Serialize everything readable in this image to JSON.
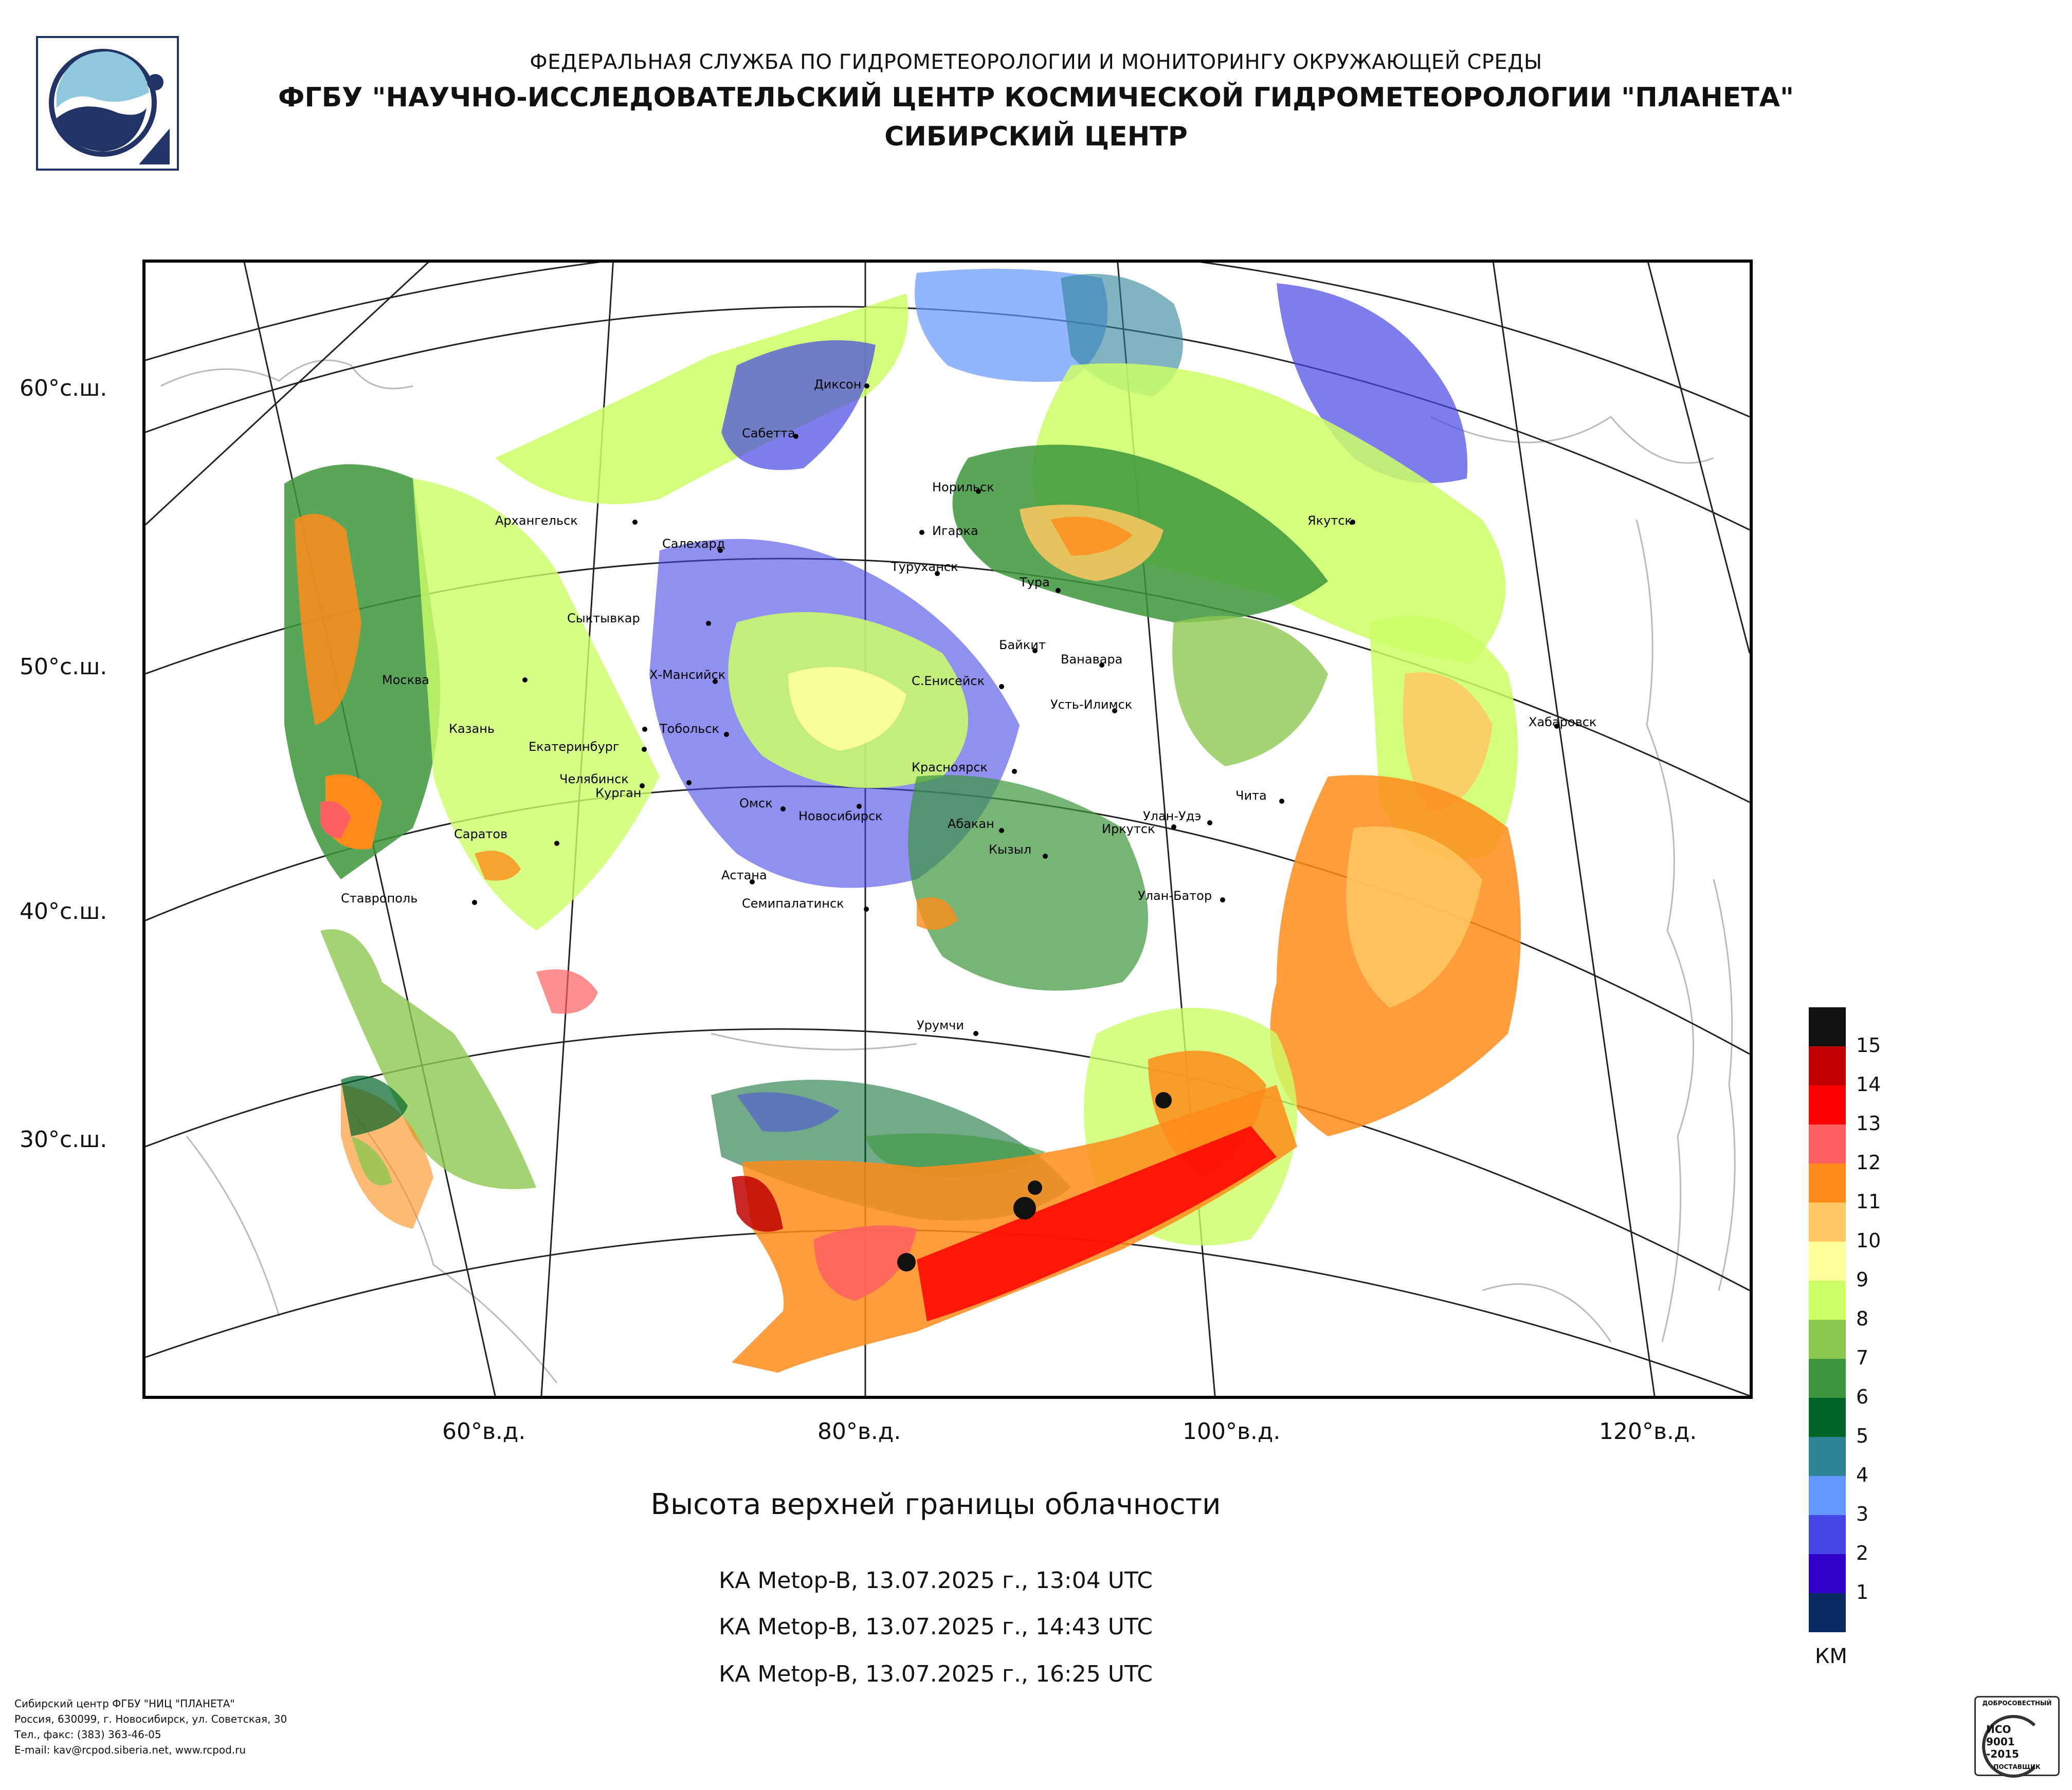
{
  "header": {
    "line1": "ФЕДЕРАЛЬНАЯ СЛУЖБА ПО ГИДРОМЕТЕОРОЛОГИИ И МОНИТОРИНГУ ОКРУЖАЮЩЕЙ СРЕДЫ",
    "line2": "ФГБУ \"НАУЧНО-ИССЛЕДОВАТЕЛЬСКИЙ ЦЕНТР КОСМИЧЕСКОЙ ГИДРОМЕТЕОРОЛОГИИ \"ПЛАНЕТА\"",
    "line3": "СИБИРСКИЙ ЦЕНТР"
  },
  "map": {
    "lat_labels": [
      "60°с.ш.",
      "50°с.ш.",
      "40°с.ш.",
      "30°с.ш."
    ],
    "lon_labels": [
      "60°в.д.",
      "80°в.д.",
      "100°в.д.",
      "120°в.д."
    ],
    "cities": [
      "Архангельск",
      "Сыктывкар",
      "Москва",
      "Казань",
      "Екатеринбург",
      "Челябинск",
      "Курган",
      "Ставрополь",
      "Саратов",
      "Диксон",
      "Сабетта",
      "Салехард",
      "Х-Мансийск",
      "Тобольск",
      "Омск",
      "Новосибирск",
      "Астана",
      "Семипалатинск",
      "Норильск",
      "Игарка",
      "Туруханск",
      "Тура",
      "Байкит",
      "Ванавара",
      "С.Енисейск",
      "Усть-Илимск",
      "Красноярск",
      "Абакан",
      "Кызыл",
      "Иркутск",
      "Улан-Удэ",
      "Улан-Батор",
      "Чита",
      "Якутск",
      "Хабаровск",
      "Урумчи"
    ]
  },
  "title": "Высота верхней границы облачности",
  "passes": [
    "КА Metop-B, 13.07.2025 г., 13:04 UTC",
    "КА Metop-B, 13.07.2025 г., 14:43 UTC",
    "КА Metop-B, 13.07.2025 г., 16:25 UTC"
  ],
  "legend": {
    "unit": "КМ",
    "levels": [
      {
        "label": "15",
        "color": "#111111"
      },
      {
        "label": "14",
        "color": "#c00000"
      },
      {
        "label": "13",
        "color": "#ff0000"
      },
      {
        "label": "12",
        "color": "#ff6060"
      },
      {
        "label": "11",
        "color": "#ff8c1a"
      },
      {
        "label": "10",
        "color": "#ffc860"
      },
      {
        "label": "9",
        "color": "#ffff99"
      },
      {
        "label": "8",
        "color": "#ccff66"
      },
      {
        "label": "7",
        "color": "#8cc850"
      },
      {
        "label": "6",
        "color": "#3c963c"
      },
      {
        "label": "5",
        "color": "#006428"
      },
      {
        "label": "4",
        "color": "#2d8296"
      },
      {
        "label": "3",
        "color": "#6496ff"
      },
      {
        "label": "2",
        "color": "#4646e6"
      },
      {
        "label": "1",
        "color": "#3200c8"
      },
      {
        "label": "",
        "color": "#0a2a64"
      }
    ]
  },
  "footer": {
    "l1": "Сибирский центр ФГБУ \"НИЦ \"ПЛАНЕТА\"",
    "l2": "Россия, 630099, г. Новосибирск, ул. Советская, 30",
    "l3": "Тел., факс: (383) 363-46-05",
    "l4": "E-mail: kav@rcpod.siberia.net, www.rcpod.ru"
  },
  "cert": {
    "top": "ДОБРОСОВЕСТНЫЙ",
    "l1": "ИСО",
    "l2": "9001",
    "l3": "-2015",
    "bottom": "ПОСТАВЩИК"
  }
}
